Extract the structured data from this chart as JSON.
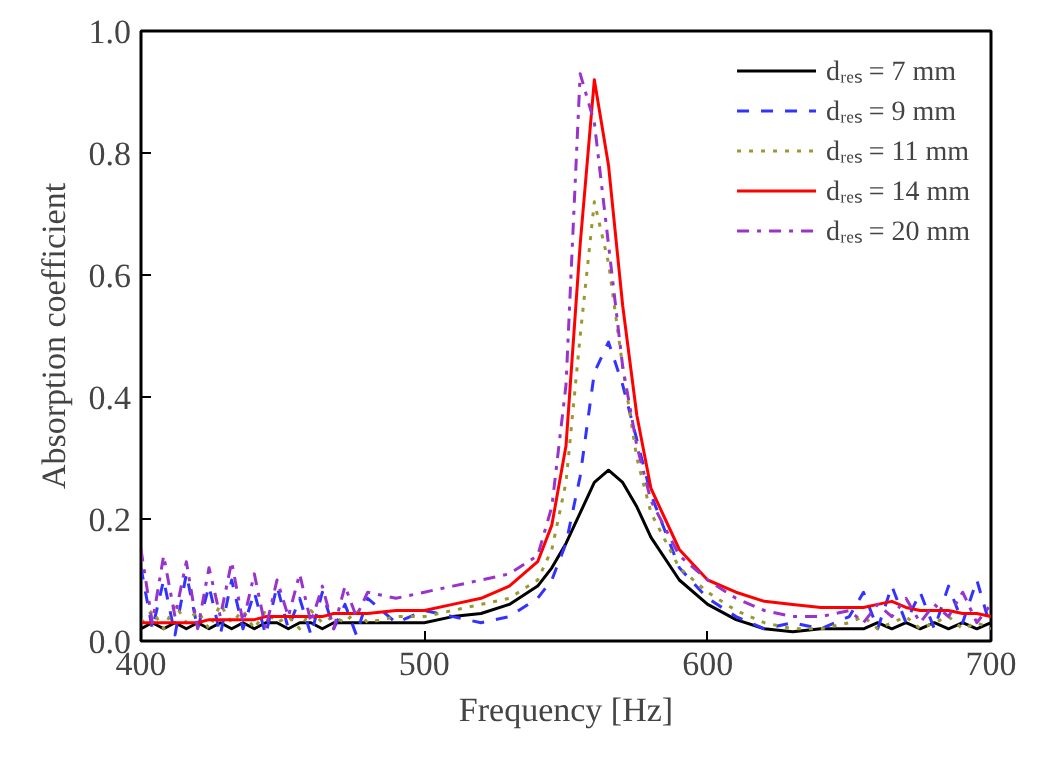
{
  "chart_data": {
    "type": "line",
    "xlabel": "Frequency [Hz]",
    "ylabel": "Absorption coefficient",
    "x": [
      400,
      404,
      408,
      412,
      416,
      420,
      424,
      428,
      432,
      436,
      440,
      444,
      448,
      452,
      456,
      460,
      464,
      468,
      472,
      476,
      480,
      490,
      500,
      510,
      520,
      530,
      540,
      545,
      550,
      555,
      560,
      565,
      570,
      575,
      580,
      590,
      600,
      610,
      620,
      630,
      640,
      650,
      655,
      660,
      665,
      670,
      675,
      680,
      685,
      690,
      695,
      700
    ],
    "xlim": [
      400,
      700
    ],
    "xticks": [
      400,
      500,
      600,
      700
    ],
    "ylim": [
      0,
      1.0
    ],
    "yticks": [
      {
        "value": 0,
        "label": "0.0"
      },
      0.2,
      0.4,
      0.6,
      0.8,
      {
        "value": 1.0,
        "label": "1.0"
      }
    ],
    "grid": false,
    "legend": "top right",
    "marker": "none",
    "series": [
      {
        "name": "dᵣₑₛ = 7 mm",
        "color": "#000000",
        "line_style": "solid",
        "values": [
          0.02,
          0.03,
          0.02,
          0.03,
          0.02,
          0.03,
          0.02,
          0.03,
          0.02,
          0.03,
          0.02,
          0.03,
          0.03,
          0.02,
          0.03,
          0.03,
          0.02,
          0.03,
          0.03,
          0.03,
          0.03,
          0.03,
          0.03,
          0.04,
          0.045,
          0.06,
          0.09,
          0.12,
          0.16,
          0.21,
          0.26,
          0.28,
          0.26,
          0.22,
          0.17,
          0.1,
          0.06,
          0.035,
          0.02,
          0.015,
          0.02,
          0.02,
          0.02,
          0.03,
          0.02,
          0.03,
          0.02,
          0.03,
          0.02,
          0.03,
          0.02,
          0.03
        ]
      },
      {
        "name": "dᵣₑₛ = 9 mm",
        "color": "#3333ff",
        "line_style": "dashed",
        "values": [
          0.12,
          0.02,
          0.1,
          0.01,
          0.11,
          0.02,
          0.09,
          0.01,
          0.1,
          0.02,
          0.08,
          0.01,
          0.09,
          0.02,
          0.07,
          0.01,
          0.08,
          0.02,
          0.06,
          0.01,
          0.07,
          0.03,
          0.05,
          0.04,
          0.03,
          0.04,
          0.07,
          0.1,
          0.16,
          0.27,
          0.44,
          0.49,
          0.42,
          0.33,
          0.24,
          0.12,
          0.07,
          0.04,
          0.02,
          0.03,
          0.02,
          0.04,
          0.08,
          0.02,
          0.09,
          0.03,
          0.08,
          0.02,
          0.09,
          0.03,
          0.1,
          0.02
        ]
      },
      {
        "name": "dᵣₑₛ = 11 mm",
        "color": "#999933",
        "line_style": "dotted",
        "values": [
          0.03,
          0.05,
          0.02,
          0.06,
          0.03,
          0.05,
          0.02,
          0.06,
          0.03,
          0.05,
          0.02,
          0.05,
          0.03,
          0.04,
          0.02,
          0.05,
          0.03,
          0.04,
          0.03,
          0.05,
          0.03,
          0.04,
          0.04,
          0.05,
          0.06,
          0.07,
          0.1,
          0.15,
          0.26,
          0.5,
          0.72,
          0.62,
          0.45,
          0.3,
          0.21,
          0.12,
          0.08,
          0.05,
          0.03,
          0.02,
          0.02,
          0.03,
          0.04,
          0.02,
          0.03,
          0.04,
          0.02,
          0.03,
          0.04,
          0.02,
          0.03,
          0.02
        ]
      },
      {
        "name": "dᵣₑₛ = 14 mm",
        "color": "#ff0000",
        "line_style": "solid",
        "values": [
          0.03,
          0.03,
          0.03,
          0.03,
          0.03,
          0.03,
          0.035,
          0.035,
          0.035,
          0.035,
          0.035,
          0.04,
          0.04,
          0.04,
          0.04,
          0.04,
          0.04,
          0.045,
          0.045,
          0.045,
          0.045,
          0.05,
          0.05,
          0.06,
          0.07,
          0.09,
          0.13,
          0.19,
          0.32,
          0.65,
          0.92,
          0.78,
          0.55,
          0.37,
          0.25,
          0.15,
          0.1,
          0.08,
          0.065,
          0.06,
          0.055,
          0.055,
          0.055,
          0.06,
          0.065,
          0.055,
          0.05,
          0.05,
          0.05,
          0.045,
          0.045,
          0.04
        ]
      },
      {
        "name": "dᵣₑₛ = 20 mm",
        "color": "#9933cc",
        "line_style": "dashdot",
        "values": [
          0.15,
          0.03,
          0.14,
          0.04,
          0.13,
          0.02,
          0.12,
          0.04,
          0.13,
          0.03,
          0.11,
          0.02,
          0.1,
          0.04,
          0.11,
          0.03,
          0.09,
          0.02,
          0.09,
          0.04,
          0.08,
          0.07,
          0.08,
          0.09,
          0.1,
          0.11,
          0.14,
          0.22,
          0.42,
          0.93,
          0.85,
          0.65,
          0.45,
          0.32,
          0.23,
          0.14,
          0.1,
          0.07,
          0.05,
          0.04,
          0.04,
          0.05,
          0.03,
          0.06,
          0.04,
          0.07,
          0.03,
          0.06,
          0.04,
          0.08,
          0.03,
          0.06
        ]
      }
    ]
  }
}
